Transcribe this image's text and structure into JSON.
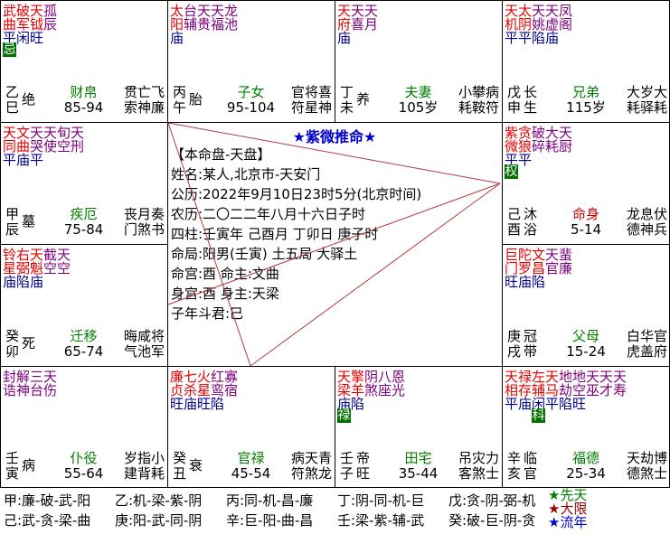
{
  "app_title": "紫微推命",
  "colors": {
    "major_star": "#e60000",
    "minor_star": "#7d007d",
    "brightness": "#00008b",
    "palace_name": "#008000",
    "life_palace_name": "#d00000",
    "hua_badge_bg": "#007000",
    "hua_badge_fg": "#ffffff",
    "aspect_line": "#b23b3b",
    "title": "#0000cc",
    "legend_xiantian": "#008000",
    "legend_daxian": "#990000",
    "legend_liunian": "#0000cc"
  },
  "center": {
    "title": "★紫微推命★",
    "lines": [
      "【本命盘-天盘】",
      "姓名:某人,北京市-天安门",
      "公历:2022年9月10日23时5分(北京时间)",
      "农历:二〇二二年八月十六日子时",
      "四柱:壬寅年 己酉月 丁卯日 庚子时",
      "命局:阳男(壬寅)  土五局 大驿土",
      "命宫:酉        命主:文曲",
      "身宫:酉        身主:天梁",
      "子年斗君:巳"
    ]
  },
  "palaces": [
    {
      "id": "si",
      "col": 0,
      "row": 0,
      "line1": "武破天孤",
      "c1": "rrrp",
      "line2": "曲军钺辰",
      "c2": "rrrp",
      "bright": "平闲旺",
      "hua": {
        "t": "忌",
        "col": 0
      },
      "stem": "乙",
      "branch": "巳",
      "stage": "绝",
      "palace": "财帛",
      "palace_color": "green",
      "range": "85-94",
      "gods": [
        "贯亡飞",
        "索神廉"
      ]
    },
    {
      "id": "wu",
      "col": 1,
      "row": 0,
      "line1": "太台天天龙",
      "c1": "rpppp",
      "line2": "阳辅贵福池",
      "c2": "rpppp",
      "bright": "庙",
      "hua": null,
      "stem": "丙",
      "branch": "午",
      "stage": "胎",
      "palace": "子女",
      "palace_color": "green",
      "range": "95-104",
      "gods": [
        "官将喜",
        "符星神"
      ]
    },
    {
      "id": "wei",
      "col": 2,
      "row": 0,
      "line1": "天天天",
      "c1": "rpp",
      "line2": "府喜月",
      "c2": "rpp",
      "bright": "庙",
      "hua": null,
      "stem": "丁",
      "branch": "未",
      "stage": "养",
      "palace": "夫妻",
      "palace_color": "green",
      "range": "105岁",
      "gods": [
        "小攀病",
        "耗鞍符"
      ]
    },
    {
      "id": "shen",
      "col": 3,
      "row": 0,
      "line1": "天太天天凤",
      "c1": "rrppp",
      "line2": "机阴姚虚阁",
      "c2": "rrppp",
      "bright": "平平陷庙",
      "hua": null,
      "stem": "戊",
      "branch": "申",
      "stage": "长生",
      "palace": "兄弟",
      "palace_color": "green",
      "range": "115岁",
      "gods": [
        "大岁大",
        "耗驿耗"
      ]
    },
    {
      "id": "chen",
      "col": 0,
      "row": 1,
      "line1": "天文天天旬天",
      "c1": "rrpppp",
      "line2": "同曲哭使空刑",
      "c2": "rrpppp",
      "bright": "平庙平",
      "hua": null,
      "stem": "甲",
      "branch": "辰",
      "stage": "墓",
      "palace": "疾厄",
      "palace_color": "green",
      "range": "75-84",
      "gods": [
        "丧月奏",
        "门煞书"
      ]
    },
    {
      "id": "you",
      "col": 3,
      "row": 1,
      "line1": "紫贪破大天",
      "c1": "rrppp",
      "line2": "微狼碎耗厨",
      "c2": "rrppp",
      "bright": "平平",
      "hua": {
        "t": "权",
        "col": 0
      },
      "stem": "己",
      "branch": "酉",
      "stage": "沐浴",
      "palace": "命身",
      "palace_color": "red",
      "range": "5-14",
      "gods": [
        "龙息伏",
        "德神兵"
      ]
    },
    {
      "id": "mao",
      "col": 0,
      "row": 2,
      "line1": "铃右天截天",
      "c1": "rrrpp",
      "line2": "星弼魁空空",
      "c2": "rrrpp",
      "bright": "庙陷庙",
      "hua": null,
      "stem": "癸",
      "branch": "卯",
      "stage": "死",
      "palace": "迁移",
      "palace_color": "green",
      "range": "65-74",
      "gods": [
        "晦咸将",
        "气池军"
      ]
    },
    {
      "id": "xu",
      "col": 3,
      "row": 2,
      "line1": "巨陀文天蜚",
      "c1": "rrrpp",
      "line2": "门罗昌官廉",
      "c2": "rrrpp",
      "bright": "旺庙陷",
      "hua": null,
      "stem": "庚",
      "branch": "戌",
      "stage": "冠带",
      "palace": "父母",
      "palace_color": "green",
      "range": "15-24",
      "gods": [
        "白华官",
        "虎盖府"
      ]
    },
    {
      "id": "yin",
      "col": 0,
      "row": 3,
      "line1": "封解三天",
      "c1": "pppp",
      "line2": "诰神台伤",
      "c2": "pppp",
      "bright": "",
      "hua": null,
      "stem": "壬",
      "branch": "寅",
      "stage": "病",
      "palace": "仆役",
      "palace_color": "green",
      "range": "55-64",
      "gods": [
        "岁指小",
        "建背耗"
      ]
    },
    {
      "id": "chou",
      "col": 1,
      "row": 3,
      "line1": "廉七火红寡",
      "c1": "rrrpp",
      "line2": "贞杀星鸾宿",
      "c2": "rrrpp",
      "bright": "旺庙旺陷",
      "hua": null,
      "stem": "癸",
      "branch": "丑",
      "stage": "衰",
      "palace": "官禄",
      "palace_color": "green",
      "range": "45-54",
      "gods": [
        "病天青",
        "符煞龙"
      ]
    },
    {
      "id": "zi",
      "col": 2,
      "row": 3,
      "line1": "天擎阴八恩",
      "c1": "rrppp",
      "line2": "梁羊煞座光",
      "c2": "rrppp",
      "bright": "庙陷",
      "hua": {
        "t": "禄",
        "col": 0
      },
      "stem": "壬",
      "branch": "子",
      "stage": "帝旺",
      "palace": "田宅",
      "palace_color": "green",
      "range": "35-44",
      "gods": [
        "吊灾力",
        "客煞士"
      ]
    },
    {
      "id": "hai",
      "col": 3,
      "row": 3,
      "line1": "天禄左天地地天天天",
      "c1": "rrrrppppp",
      "line2": "相存辅马劫空巫才寿",
      "c2": "rrrrppppp",
      "bright": "平庙闲平陷旺",
      "hua": {
        "t": "科",
        "col": 2
      },
      "stem": "辛",
      "branch": "亥",
      "stage": "临官",
      "palace": "福德",
      "palace_color": "green",
      "range": "25-34",
      "gods": [
        "天劫博",
        "德煞士"
      ]
    }
  ],
  "legend": {
    "rows": [
      [
        "甲:廉-破-武-阳",
        "乙:机-梁-紫-阴",
        "丙:同-机-昌-廉",
        "丁:阴-同-机-巨",
        "戊:贪-阴-弼-机"
      ],
      [
        "己:武-贪-梁-曲",
        "庚:阳-武-同-阴",
        "辛:巨-阳-曲-昌",
        "壬:梁-紫-辅-武",
        "癸:破-巨-阴-贪"
      ]
    ],
    "stars": [
      {
        "glyph": "★",
        "label": "先天",
        "color": "#008000"
      },
      {
        "glyph": "★",
        "label": "大限",
        "color": "#990000"
      },
      {
        "glyph": "★",
        "label": "流年",
        "color": "#0000cc"
      }
    ]
  }
}
